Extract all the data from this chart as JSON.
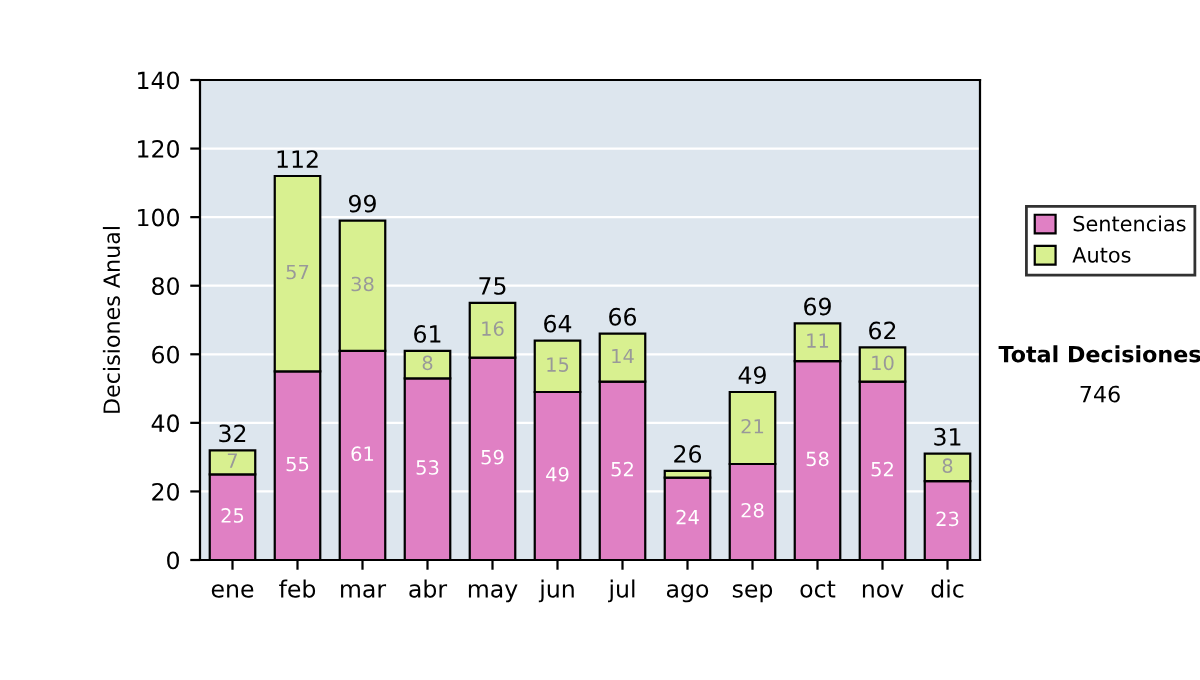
{
  "chart_data": {
    "type": "bar",
    "stacked": true,
    "ylabel": "Decisiones Anual",
    "categories": [
      "ene",
      "feb",
      "mar",
      "abr",
      "may",
      "jun",
      "jul",
      "ago",
      "sep",
      "oct",
      "nov",
      "dic"
    ],
    "series": [
      {
        "name": "Sentencias",
        "color": "#e080c4",
        "values": [
          25,
          55,
          61,
          53,
          59,
          49,
          52,
          24,
          28,
          58,
          52,
          23
        ],
        "value_labels": [
          "25",
          "55",
          "61",
          "53",
          "59",
          "49",
          "52",
          "24",
          "28",
          "58",
          "52",
          "23"
        ]
      },
      {
        "name": "Autos",
        "color": "#d8f090",
        "values": [
          7,
          57,
          38,
          8,
          16,
          15,
          14,
          2,
          21,
          11,
          10,
          8
        ],
        "value_labels": [
          "7",
          "57",
          "38",
          "8",
          "16",
          "15",
          "14",
          null,
          "21",
          "11",
          "10",
          "8"
        ]
      }
    ],
    "totals": [
      "32",
      "112",
      "99",
      "61",
      "75",
      "64",
      "66",
      "26",
      "49",
      "69",
      "62",
      "31"
    ],
    "ylim": [
      0,
      140
    ],
    "yticks": [
      0,
      20,
      40,
      60,
      80,
      100,
      120,
      140
    ],
    "grid": "y",
    "legend": "right",
    "annotations": [
      "Total Decisiones",
      "746"
    ]
  }
}
